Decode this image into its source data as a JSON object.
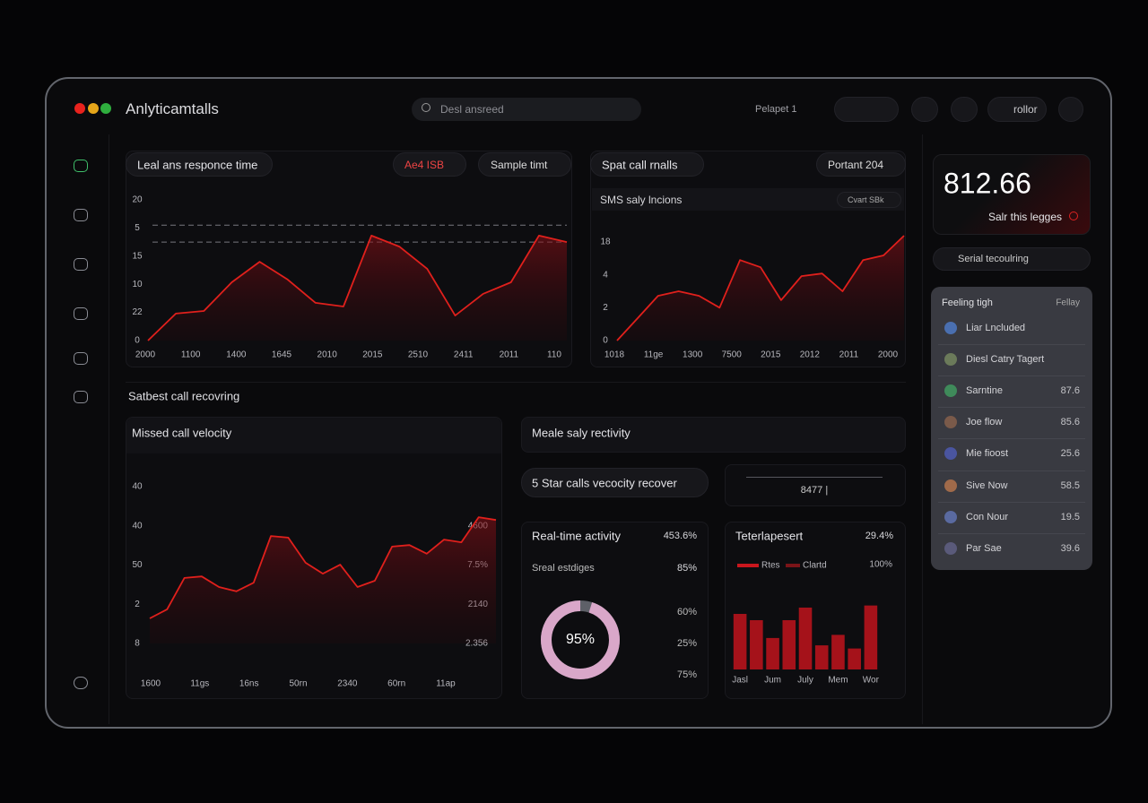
{
  "header": {
    "title": "Anlyticamtalls",
    "search_placeholder": "Desl ansreed",
    "menu": "Pelapet 1",
    "button": "rollor"
  },
  "chart_data": [
    {
      "type": "line",
      "title": "Leal ans responce time",
      "controls": [
        "Ae4 ISB",
        "Sample timt"
      ],
      "ylim": [
        0,
        5
      ],
      "yticks": [
        0,
        {
          "value": 1,
          "label": "22"
        },
        {
          "value": 2,
          "label": "10"
        },
        {
          "value": 3,
          "label": "15"
        },
        {
          "value": 4,
          "label": "5"
        },
        {
          "value": 5,
          "label": "20"
        }
      ],
      "x_labels": [
        "2000",
        "1100",
        "1400",
        "1645",
        "2010",
        "2015",
        "2510",
        "2411",
        "2011",
        "110"
      ],
      "series": [
        {
          "color": "#e0201c",
          "values": [
            0,
            0.96,
            1.05,
            2.07,
            2.8,
            2.17,
            1.34,
            1.21,
            3.73,
            3.34,
            2.55,
            0.89,
            1.66,
            2.07,
            3.73,
            3.5
          ]
        }
      ],
      "reference_lines": [
        4.1,
        3.5
      ]
    },
    {
      "type": "line",
      "title": "Spat call rnalls",
      "controls": [
        "Portant 204"
      ],
      "subtitle": "SMS saly lncions",
      "button": "Cvart SBk",
      "ylim": [
        0,
        3
      ],
      "yticks": [
        0,
        {
          "value": 1,
          "label": "2"
        },
        {
          "value": 2,
          "label": "4"
        },
        {
          "value": 3,
          "label": "18"
        }
      ],
      "x_labels": [
        "1018",
        "11ge",
        "1300",
        "7500",
        "2015",
        "2012",
        "2011",
        "2000"
      ],
      "series": [
        {
          "color": "#e0201c",
          "values": [
            0,
            0.68,
            1.36,
            1.5,
            1.36,
            1.0,
            2.45,
            2.23,
            1.23,
            1.96,
            2.04,
            1.5,
            2.45,
            2.59,
            3.19
          ]
        }
      ]
    },
    {
      "type": "line",
      "title": "Missed call velocity",
      "ylim": [
        0,
        4
      ],
      "yticks": [
        {
          "value": 0,
          "label": "8"
        },
        {
          "value": 1,
          "label": "2"
        },
        {
          "value": 2,
          "label": "50"
        },
        {
          "value": 3,
          "label": "40"
        },
        {
          "value": 4,
          "label": "40"
        }
      ],
      "y2lim": [
        0,
        4
      ],
      "y2ticks": [
        {
          "value": 0,
          "label": "2.356"
        },
        {
          "value": 1,
          "label": "2140"
        },
        {
          "value": 2,
          "label": "7.5%"
        },
        {
          "value": 3,
          "label": "4600"
        }
      ],
      "x_labels": [
        "1600",
        "11gs",
        "16ns",
        "50rn",
        "2340",
        "60rn",
        "11ap"
      ],
      "series": [
        {
          "color": "#e0201c",
          "values": [
            0.64,
            0.87,
            1.67,
            1.71,
            1.44,
            1.33,
            1.55,
            2.74,
            2.7,
            2.06,
            1.78,
            2.01,
            1.44,
            1.6,
            2.47,
            2.51,
            2.29,
            2.65,
            2.58,
            3.22,
            3.15
          ]
        }
      ]
    },
    {
      "type": "donut",
      "title": "Real-time activity",
      "title_value": "453.6%",
      "subtitle": "Sreal estdiges",
      "subtitle_value": "85%",
      "value": 95,
      "value_label": "95%",
      "color": "#d9a7c9",
      "scale_labels": [
        "60%",
        "25%",
        "75%"
      ]
    },
    {
      "type": "bar",
      "title": "Teterlapesert",
      "title_value": "29.4%",
      "legend": [
        {
          "name": "Rtes",
          "color": "#c8161d"
        },
        {
          "name": "Clartd",
          "color": "#7a1418"
        }
      ],
      "color": "#a5121a",
      "ylim": [
        0,
        100
      ],
      "yticks": [
        {
          "value": 100,
          "label": "100%"
        }
      ],
      "categories": [
        "Jasl",
        null,
        "Jum",
        null,
        "July",
        null,
        "Mem",
        null,
        "Wor"
      ],
      "values": [
        53,
        47,
        30,
        47,
        59,
        23,
        33,
        20,
        61
      ]
    }
  ],
  "section_title": "Satbest call recovring",
  "activity_panel": {
    "title": "Meale saly rectivity",
    "pill": "5 Star calls vecocity recover",
    "metric": "8477 |"
  },
  "kpi": {
    "value": "812.66",
    "label": "Salr this legges"
  },
  "filter": "Serial tecoulring",
  "list": {
    "title": "Feeling tigh",
    "action": "Fellay",
    "rows": [
      {
        "name": "Liar Lncluded"
      },
      {
        "name": "Diesl Catry Tagert"
      },
      {
        "name": "Sarntine",
        "value": "87.6"
      },
      {
        "name": "Joe flow",
        "value": "85.6"
      },
      {
        "name": "Mie fioost",
        "value": "25.6"
      },
      {
        "name": "Sive Now",
        "value": "58.5"
      },
      {
        "name": "Con Nour",
        "value": "19.5"
      },
      {
        "name": "Par Sae",
        "value": "39.6"
      }
    ]
  }
}
